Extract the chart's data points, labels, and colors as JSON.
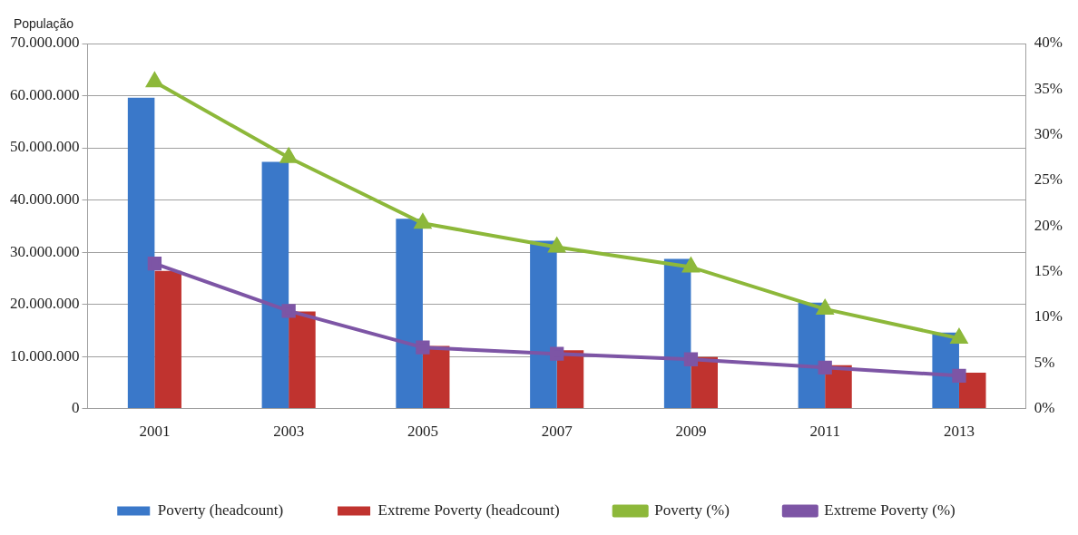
{
  "chart_data": {
    "type": "bar",
    "ylabel": "População",
    "categories": [
      "2001",
      "2003",
      "2005",
      "2007",
      "2009",
      "2011",
      "2013"
    ],
    "series": [
      {
        "name": "Poverty (headcount)",
        "color": "#3a78c9",
        "values": [
          59600000,
          47300000,
          36400000,
          32200000,
          28700000,
          20300000,
          14600000
        ]
      },
      {
        "name": "Extreme Poverty (headcount)",
        "color": "#c0332f",
        "values": [
          26400000,
          18600000,
          12000000,
          11200000,
          9900000,
          8300000,
          6900000
        ]
      },
      {
        "name": "Poverty (%)",
        "type": "line",
        "axis": "y2",
        "marker": "triangle",
        "color": "#8db83a",
        "values": [
          35.8,
          27.5,
          20.3,
          17.7,
          15.5,
          10.9,
          7.7
        ]
      },
      {
        "name": "Extreme Poverty (%)",
        "type": "line",
        "axis": "y2",
        "marker": "square",
        "color": "#7d55a5",
        "values": [
          15.9,
          10.7,
          6.7,
          6.0,
          5.4,
          4.5,
          3.6
        ]
      }
    ],
    "ylim": [
      0,
      70000000
    ],
    "yticks": [
      {
        "value": 0,
        "label": "0"
      },
      {
        "value": 10000000,
        "label": "10.000.000"
      },
      {
        "value": 20000000,
        "label": "20.000.000"
      },
      {
        "value": 30000000,
        "label": "30.000.000"
      },
      {
        "value": 40000000,
        "label": "40.000.000"
      },
      {
        "value": 50000000,
        "label": "50.000.000"
      },
      {
        "value": 60000000,
        "label": "60.000.000"
      },
      {
        "value": 70000000,
        "label": "70.000.000"
      }
    ],
    "y2lim": [
      0,
      40
    ],
    "y2ticks": [
      {
        "value": 0,
        "label": "0%"
      },
      {
        "value": 5,
        "label": "5%"
      },
      {
        "value": 10,
        "label": "10%"
      },
      {
        "value": 15,
        "label": "15%"
      },
      {
        "value": 20,
        "label": "20%"
      },
      {
        "value": 25,
        "label": "25%"
      },
      {
        "value": 30,
        "label": "30%"
      },
      {
        "value": 35,
        "label": "35%"
      },
      {
        "value": 40,
        "label": "40%"
      }
    ],
    "grid": "y",
    "legend": "bottom"
  }
}
